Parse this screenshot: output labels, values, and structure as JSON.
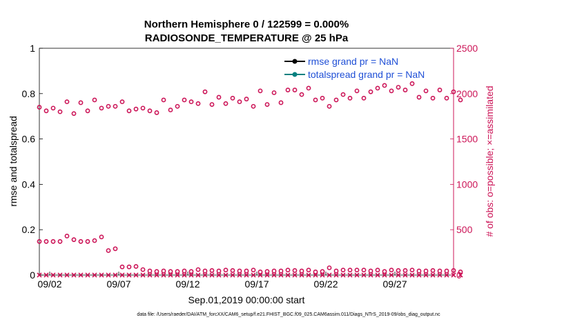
{
  "chart_data": {
    "type": "scatter",
    "title_line1": "Northern Hemisphere 0 / 122599 = 0.000%",
    "title_line2": "RADIOSONDE_TEMPERATURE @ 25 hPa",
    "xlabel": "Sep.01,2019 00:00:00 start",
    "ylabel_left": "rmse and totalspread",
    "ylabel_right": "# of obs: o=possible; ×=assimilated",
    "x_ticks": [
      {
        "day": 2,
        "label": "09/02"
      },
      {
        "day": 7,
        "label": "09/07"
      },
      {
        "day": 12,
        "label": "09/12"
      },
      {
        "day": 17,
        "label": "09/17"
      },
      {
        "day": 22,
        "label": "09/22"
      },
      {
        "day": 27,
        "label": "09/27"
      }
    ],
    "xlim": [
      1.25,
      31.25
    ],
    "left_axis": {
      "ylim": [
        0,
        1
      ],
      "ticks": [
        "0",
        "0.2",
        "0.4",
        "0.6",
        "0.8",
        "1"
      ]
    },
    "right_axis": {
      "ylim": [
        0,
        2500
      ],
      "ticks": [
        "0",
        "500",
        "1000",
        "1500",
        "2000",
        "2500"
      ]
    },
    "legend": [
      {
        "label": "rmse grand pr = NaN",
        "color": "#000000"
      },
      {
        "label": "totalspread grand pr = NaN",
        "color": "#00807f"
      }
    ],
    "series": [
      {
        "name": "possible (upper level)",
        "x_start": 1.25,
        "x_step": 0.5,
        "values": [
          1850,
          1810,
          1840,
          1800,
          1910,
          1780,
          1900,
          1810,
          1930,
          1840,
          1860,
          1860,
          1910,
          1810,
          1830,
          1840,
          1810,
          1790,
          1930,
          1820,
          1860,
          1930,
          1910,
          1890,
          2020,
          1880,
          1960,
          1890,
          1950,
          1910,
          1940,
          1860,
          2030,
          1880,
          2010,
          1900,
          2040,
          2040,
          1990,
          2060,
          1930,
          1950,
          1860,
          1930,
          1990,
          1950,
          2030,
          1950,
          2020,
          2060,
          2090,
          2030,
          2070,
          2040,
          2110,
          1960,
          2030,
          1950,
          2040,
          1950,
          2020,
          1930
        ]
      },
      {
        "name": "possible (lower level)",
        "x_start": 1.25,
        "x_step": 0.5,
        "values": [
          370,
          370,
          370,
          370,
          430,
          390,
          370,
          370,
          380,
          420,
          270,
          290,
          90,
          90,
          95,
          60,
          45,
          40,
          45,
          40,
          40,
          45,
          40,
          60,
          45,
          50,
          45,
          55,
          50,
          45,
          45,
          55,
          35,
          40,
          45,
          45,
          55,
          50,
          45,
          55,
          35,
          40,
          80,
          45,
          55,
          55,
          55,
          55,
          45,
          55,
          40,
          55,
          50,
          50,
          55,
          45,
          45,
          50,
          45,
          45,
          50,
          35
        ]
      },
      {
        "name": "assimilated",
        "constant": 0
      }
    ],
    "footer": "data file: /Users/raeder/DAI/ATM_forcXX/CAM6_setup/f.e21.FHIST_BGC.f09_025.CAM6assim.011/Diags_NTrS_2019-09/obs_diag_output.nc",
    "colors": {
      "axis_right": "#cc1457",
      "legend_text": "#1f4fd6",
      "rmse": "#000000",
      "spread": "#00807f"
    }
  }
}
